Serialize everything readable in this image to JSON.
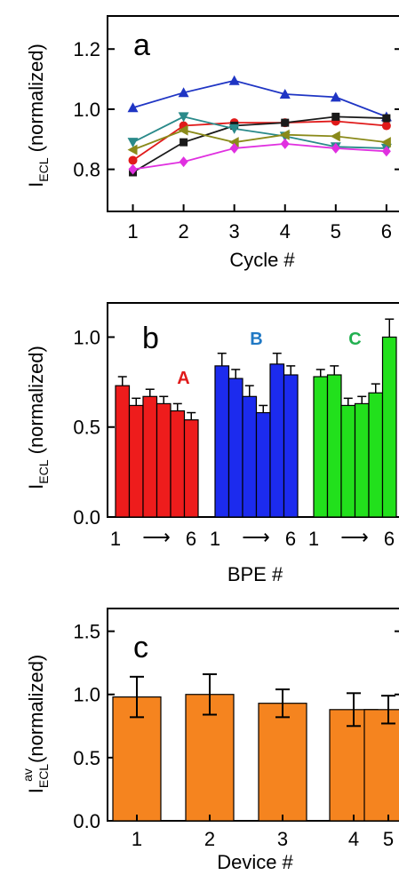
{
  "chart_data": [
    {
      "panel": "a",
      "type": "line",
      "xlabel": "Cycle #",
      "ylabel": {
        "base": "I",
        "sub": "ECL",
        "rest": " (normalized)"
      },
      "xlim": [
        0.5,
        6.3
      ],
      "ylim": [
        0.66,
        1.31
      ],
      "x_ticks": [
        1,
        2,
        3,
        4,
        5,
        6
      ],
      "y_ticks": [
        "0.8",
        "1.0",
        "1.2"
      ],
      "y_tick_values": [
        0.8,
        1.0,
        1.2
      ],
      "x": [
        1,
        2,
        3,
        4,
        5,
        6
      ],
      "series": [
        {
          "color": "#1f35c4",
          "marker": "triangle-up",
          "values": [
            1.005,
            1.055,
            1.095,
            1.05,
            1.04,
            0.975
          ]
        },
        {
          "color": "#e01a1a",
          "marker": "circle",
          "values": [
            0.83,
            0.945,
            0.955,
            0.955,
            0.96,
            0.945
          ]
        },
        {
          "color": "#1a1a1a",
          "marker": "square",
          "values": [
            0.79,
            0.89,
            0.945,
            0.955,
            0.975,
            0.97
          ]
        },
        {
          "color": "#2a8a8a",
          "marker": "triangle-down",
          "values": [
            0.89,
            0.975,
            0.935,
            0.91,
            0.875,
            0.87
          ]
        },
        {
          "color": "#8a8a1a",
          "marker": "triangle-left",
          "values": [
            0.865,
            0.93,
            0.89,
            0.915,
            0.91,
            0.89
          ]
        },
        {
          "color": "#e030e0",
          "marker": "diamond",
          "values": [
            0.8,
            0.825,
            0.87,
            0.885,
            0.87,
            0.86
          ]
        }
      ]
    },
    {
      "panel": "b",
      "type": "bar",
      "xlabel": "BPE #",
      "ylabel": {
        "base": "I",
        "sub": "ECL",
        "rest": " (normalized)"
      },
      "ylim": [
        0,
        1.19
      ],
      "y_ticks": [
        "0.0",
        "0.5",
        "1.0"
      ],
      "y_tick_values": [
        0.0,
        0.5,
        1.0
      ],
      "x_group_label": {
        "start": "1",
        "arrow": "⟶",
        "end": "6"
      },
      "groups": [
        {
          "name": "A",
          "color": "#ee1c1c",
          "values": [
            0.73,
            0.62,
            0.67,
            0.63,
            0.59,
            0.54
          ],
          "errors": [
            0.05,
            0.04,
            0.04,
            0.04,
            0.04,
            0.04
          ]
        },
        {
          "name": "B",
          "color": "#1c2bee",
          "values": [
            0.84,
            0.77,
            0.67,
            0.58,
            0.85,
            0.79
          ],
          "errors": [
            0.07,
            0.05,
            0.06,
            0.04,
            0.06,
            0.05
          ]
        },
        {
          "name": "C",
          "color": "#22e01c",
          "values": [
            0.78,
            0.79,
            0.62,
            0.63,
            0.69,
            1.0
          ],
          "errors": [
            0.04,
            0.05,
            0.04,
            0.04,
            0.05,
            0.1
          ]
        }
      ],
      "group_label_colors": [
        "#e01a1a",
        "#1f78c4",
        "#22b050"
      ]
    },
    {
      "panel": "c",
      "type": "bar",
      "xlabel": "Device #",
      "ylabel": {
        "base": "I",
        "sup": "av",
        "sub": "ECL",
        "rest": " (normalized)"
      },
      "ylim": [
        0,
        1.68
      ],
      "y_ticks": [
        "0.0",
        "0.5",
        "1.0",
        "1.5"
      ],
      "y_tick_values": [
        0.0,
        0.5,
        1.0,
        1.5
      ],
      "categories": [
        "1",
        "2",
        "3",
        "4",
        "5"
      ],
      "values": [
        0.98,
        1.0,
        0.93,
        0.88,
        0.88
      ],
      "errors": [
        0.16,
        0.16,
        0.11,
        0.13,
        0.11
      ],
      "color": "#f5841f"
    }
  ]
}
